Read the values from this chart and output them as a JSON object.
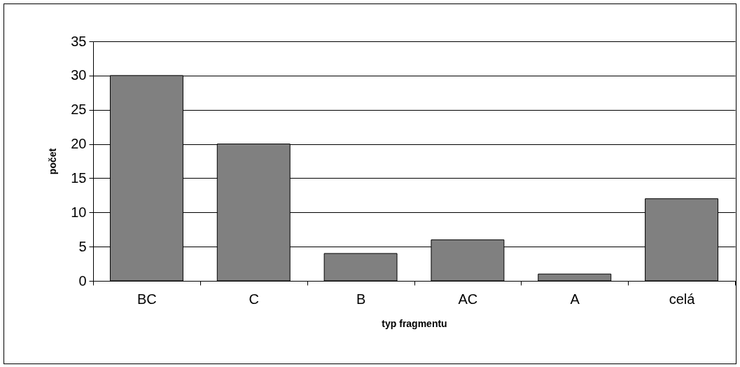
{
  "chart_data": {
    "type": "bar",
    "xlabel": "typ fragmentu",
    "ylabel": "počet",
    "categories": [
      "BC",
      "C",
      "B",
      "AC",
      "A",
      "celá"
    ],
    "values": [
      30,
      20,
      4,
      6,
      1,
      12
    ],
    "color": "#808080",
    "ylim": [
      0,
      35
    ],
    "yticks": [
      0,
      5,
      10,
      15,
      20,
      25,
      30,
      35
    ],
    "grid": "y"
  }
}
